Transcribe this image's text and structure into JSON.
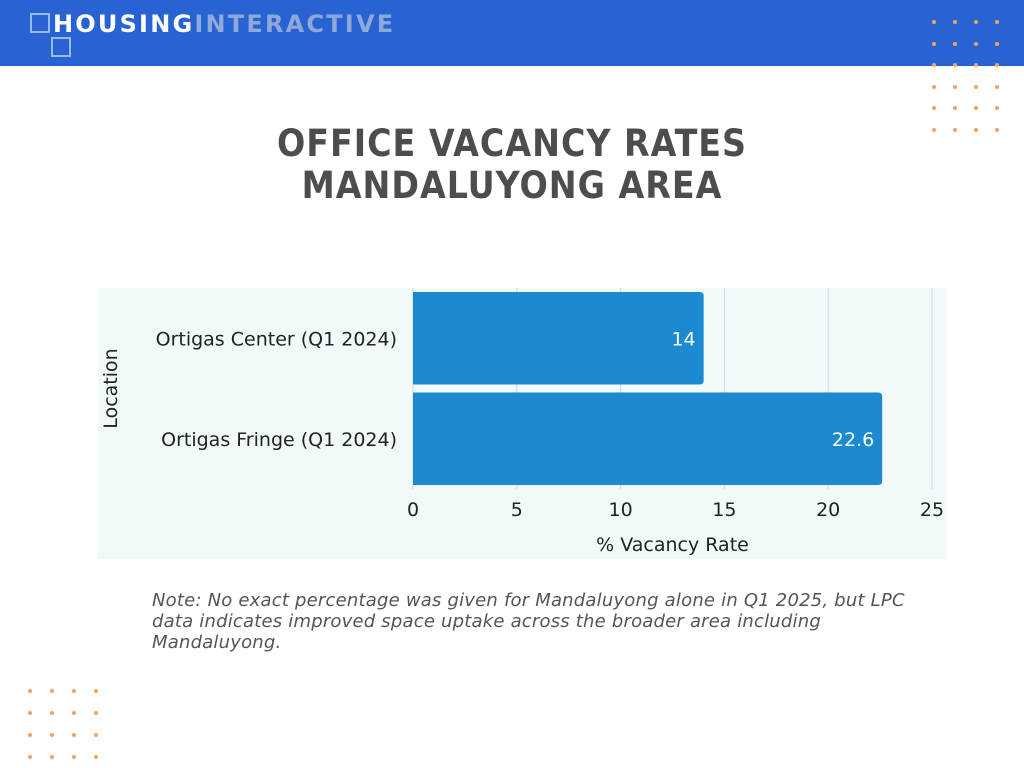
{
  "brand": {
    "part1": "HOUSING",
    "part2": "INTERACTIVE"
  },
  "title": {
    "line1": "OFFICE VACANCY RATES",
    "line2": "MANDALUYONG AREA"
  },
  "colors": {
    "header": "#2763d3",
    "bar": "#1b8ad1",
    "plot_bg": "#f1f9fb",
    "dots": "#f0a45c",
    "text": "#333333"
  },
  "chart_data": {
    "type": "bar",
    "orientation": "horizontal",
    "categories": [
      "Ortigas Center (Q1 2024)",
      "Ortigas Fringe (Q1 2024)"
    ],
    "values": [
      14,
      22.6
    ],
    "data_labels": [
      "14",
      "22.6"
    ],
    "xlabel": "% Vacancy Rate",
    "ylabel": "Location",
    "xlim": [
      0,
      25
    ],
    "xticks": [
      0,
      5,
      10,
      15,
      20,
      25
    ],
    "grid": "vertical"
  },
  "note": "Note: No exact percentage was given for Mandaluyong alone in Q1 2025, but LPC data indicates improved space uptake across the broader area including Mandaluyong."
}
